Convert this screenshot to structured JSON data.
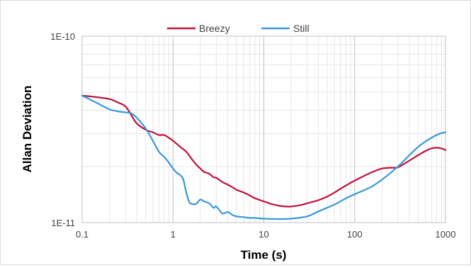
{
  "chart_data": {
    "type": "line",
    "xlabel": "Time (s)",
    "ylabel": "Allan Deviation",
    "xscale": "log",
    "yscale": "log",
    "xlim": [
      0.1,
      1000
    ],
    "ylim": [
      1e-11,
      1e-10
    ],
    "x_ticks": [
      {
        "value": 0.1,
        "label": "0.1"
      },
      {
        "value": 1,
        "label": "1"
      },
      {
        "value": 10,
        "label": "10"
      },
      {
        "value": 100,
        "label": "100"
      },
      {
        "value": 1000,
        "label": "1000"
      }
    ],
    "y_ticks": [
      {
        "value": 1e-11,
        "label": "1E-11"
      },
      {
        "value": 1e-10,
        "label": "1E-10"
      }
    ],
    "grid": "major and minor",
    "legend_position": "top",
    "series": [
      {
        "name": "Breezy",
        "color": "#c0143c",
        "x": [
          0.1,
          0.15,
          0.2,
          0.25,
          0.3,
          0.35,
          0.4,
          0.5,
          0.6,
          0.7,
          0.8,
          0.9,
          1.0,
          1.2,
          1.4,
          1.6,
          1.8,
          2.0,
          2.2,
          2.5,
          2.8,
          3.0,
          3.5,
          4.0,
          4.5,
          5.0,
          6.0,
          7.0,
          8.0,
          10,
          12,
          15,
          18,
          20,
          25,
          30,
          40,
          50,
          60,
          70,
          80,
          100,
          150,
          200,
          250,
          300,
          400,
          500,
          600,
          700,
          800,
          900,
          1000
        ],
        "y": [
          4.8e-11,
          4.7e-11,
          4.6e-11,
          4.4e-11,
          4.2e-11,
          3.75e-11,
          3.4e-11,
          3.15e-11,
          3.05e-11,
          2.95e-11,
          2.95e-11,
          2.85e-11,
          2.75e-11,
          2.55e-11,
          2.4e-11,
          2.2e-11,
          2.05e-11,
          1.95e-11,
          1.87e-11,
          1.83e-11,
          1.75e-11,
          1.74e-11,
          1.65e-11,
          1.6e-11,
          1.55e-11,
          1.5e-11,
          1.45e-11,
          1.4e-11,
          1.35e-11,
          1.3e-11,
          1.26e-11,
          1.23e-11,
          1.22e-11,
          1.22e-11,
          1.24e-11,
          1.27e-11,
          1.32e-11,
          1.38e-11,
          1.45e-11,
          1.52e-11,
          1.58e-11,
          1.68e-11,
          1.85e-11,
          1.95e-11,
          1.97e-11,
          1.98e-11,
          2.15e-11,
          2.3e-11,
          2.42e-11,
          2.5e-11,
          2.52e-11,
          2.5e-11,
          2.45e-11
        ]
      },
      {
        "name": "Still",
        "color": "#3a9ad9",
        "x": [
          0.1,
          0.15,
          0.2,
          0.25,
          0.3,
          0.35,
          0.4,
          0.5,
          0.6,
          0.7,
          0.8,
          0.9,
          1.0,
          1.1,
          1.2,
          1.3,
          1.4,
          1.5,
          1.6,
          1.8,
          2.0,
          2.2,
          2.5,
          2.8,
          3.0,
          3.5,
          4.0,
          4.5,
          5.0,
          6.0,
          7.0,
          8.0,
          10,
          15,
          20,
          30,
          40,
          60,
          80,
          100,
          150,
          200,
          300,
          400,
          500,
          600,
          700,
          800,
          900,
          1000
        ],
        "y": [
          4.8e-11,
          4.35e-11,
          4.05e-11,
          3.95e-11,
          3.9e-11,
          3.85e-11,
          3.65e-11,
          3.2e-11,
          2.75e-11,
          2.4e-11,
          2.25e-11,
          2.1e-11,
          1.95e-11,
          1.85e-11,
          1.8e-11,
          1.7e-11,
          1.45e-11,
          1.3e-11,
          1.26e-11,
          1.26e-11,
          1.33e-11,
          1.3e-11,
          1.27e-11,
          1.2e-11,
          1.22e-11,
          1.12e-11,
          1.14e-11,
          1.1e-11,
          1.08e-11,
          1.07e-11,
          1.06e-11,
          1.06e-11,
          1.05e-11,
          1.045e-11,
          1.05e-11,
          1.08e-11,
          1.15e-11,
          1.25e-11,
          1.35e-11,
          1.42e-11,
          1.55e-11,
          1.7e-11,
          2e-11,
          2.3e-11,
          2.55e-11,
          2.72e-11,
          2.85e-11,
          2.95e-11,
          3.02e-11,
          3.05e-11
        ]
      }
    ]
  }
}
